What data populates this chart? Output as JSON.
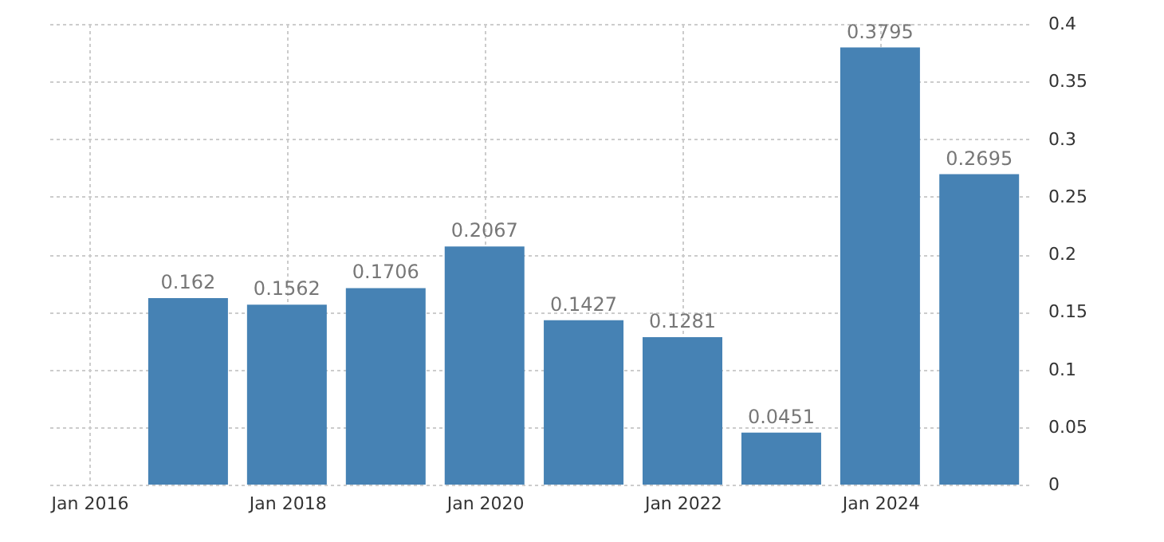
{
  "chart_data": {
    "type": "bar",
    "x": [
      "2016-12-31",
      "2017-12-31",
      "2018-12-31",
      "2019-12-31",
      "2020-12-31",
      "2021-12-31",
      "2022-12-31",
      "2023-12-31",
      "2024-12-31"
    ],
    "values": [
      0.162,
      0.1562,
      0.1706,
      0.2067,
      0.1427,
      0.1281,
      0.0451,
      0.3795,
      0.2695
    ],
    "color": "#4682b4",
    "xlim": [
      "2015-08-01",
      "2025-07-01"
    ],
    "xticks": [
      {
        "value": "2016-01-01",
        "label": "Jan 2016"
      },
      {
        "value": "2018-01-01",
        "label": "Jan 2018"
      },
      {
        "value": "2020-01-01",
        "label": "Jan 2020"
      },
      {
        "value": "2022-01-01",
        "label": "Jan 2022"
      },
      {
        "value": "2024-01-01",
        "label": "Jan 2024"
      }
    ],
    "ylim": [
      0,
      0.4
    ],
    "yticks": [
      0,
      0.05,
      0.1,
      0.15,
      0.2,
      0.25,
      0.3,
      0.35,
      0.4
    ],
    "grid": true,
    "data_labels": true
  }
}
